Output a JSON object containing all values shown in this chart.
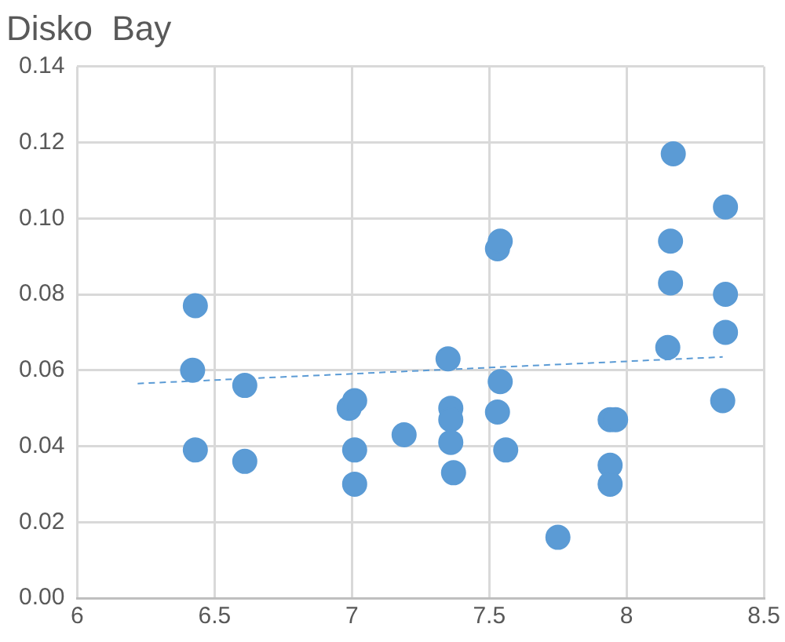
{
  "chart_data": {
    "type": "scatter",
    "title": "Disko  Bay",
    "xlim": [
      6,
      8.5
    ],
    "xticks": [
      6,
      6.5,
      7,
      7.5,
      8,
      8.5
    ],
    "ylim": [
      0,
      0.14
    ],
    "yticks": [
      {
        "value": 0,
        "label": "0.00"
      },
      {
        "value": 0.02,
        "label": "0.02"
      },
      {
        "value": 0.04,
        "label": "0.04"
      },
      {
        "value": 0.06,
        "label": "0.06"
      },
      {
        "value": 0.08,
        "label": "0.08"
      },
      {
        "value": 0.1,
        "label": "0.10"
      },
      {
        "value": 0.12,
        "label": "0.12"
      },
      {
        "value": 0.14,
        "label": "0.14"
      }
    ],
    "grid": true,
    "legend": false,
    "marker": "circle",
    "series": [
      {
        "color": "#5b9bd5",
        "x": [
          6.42,
          6.43,
          6.43,
          6.61,
          6.61,
          6.99,
          7.01,
          7.01,
          7.01,
          7.19,
          7.35,
          7.36,
          7.36,
          7.36,
          7.37,
          7.53,
          7.54,
          7.54,
          7.53,
          7.56,
          7.75,
          7.94,
          7.96,
          7.94,
          7.94,
          8.17,
          8.16,
          8.16,
          8.15,
          8.36,
          8.36,
          8.36,
          8.35
        ],
        "values": [
          0.06,
          0.077,
          0.039,
          0.056,
          0.036,
          0.05,
          0.052,
          0.039,
          0.03,
          0.043,
          0.063,
          0.05,
          0.047,
          0.041,
          0.033,
          0.092,
          0.094,
          0.057,
          0.049,
          0.039,
          0.016,
          0.047,
          0.047,
          0.035,
          0.03,
          0.117,
          0.094,
          0.083,
          0.066,
          0.103,
          0.08,
          0.07,
          0.052
        ]
      },
      {
        "type": "line",
        "color": "#5b9bd5",
        "line_style": "dashed",
        "marker": "none",
        "x": [
          6.22,
          8.35
        ],
        "values": [
          0.0565,
          0.0635
        ]
      }
    ]
  }
}
